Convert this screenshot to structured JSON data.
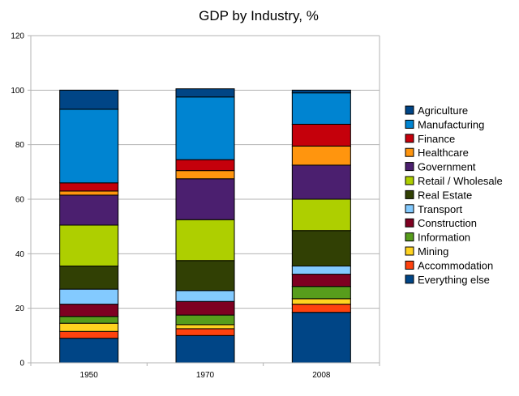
{
  "chart_data": {
    "type": "bar",
    "stacked": true,
    "title": "GDP by Industry, %",
    "xlabel": "",
    "ylabel": "",
    "ylim": [
      0,
      120
    ],
    "yticks": [
      0,
      20,
      40,
      60,
      80,
      100,
      120
    ],
    "grid": true,
    "legend_position": "right",
    "categories": [
      "1950",
      "1970",
      "2008"
    ],
    "series": [
      {
        "name": "Everything else",
        "color": "#004586",
        "values": [
          9,
          10,
          18.5
        ]
      },
      {
        "name": "Accommodation",
        "color": "#ff420e",
        "values": [
          2.5,
          2.5,
          3
        ]
      },
      {
        "name": "Mining",
        "color": "#ffd320",
        "values": [
          3,
          1.5,
          2
        ]
      },
      {
        "name": "Information",
        "color": "#579d1c",
        "values": [
          2.5,
          3.5,
          4.5
        ]
      },
      {
        "name": "Construction",
        "color": "#7e0021",
        "values": [
          4.5,
          5,
          4.5
        ]
      },
      {
        "name": "Transport",
        "color": "#83caff",
        "values": [
          5.5,
          4,
          3
        ]
      },
      {
        "name": "Real Estate",
        "color": "#314004",
        "values": [
          8.5,
          11,
          13
        ]
      },
      {
        "name": "Retail / Wholesale",
        "color": "#aecf00",
        "values": [
          15,
          15,
          11.5
        ]
      },
      {
        "name": "Government",
        "color": "#4b1f6f",
        "values": [
          11,
          15,
          12.5
        ]
      },
      {
        "name": "Healthcare",
        "color": "#ff950e",
        "values": [
          1.5,
          3,
          7
        ]
      },
      {
        "name": "Finance",
        "color": "#c5000b",
        "values": [
          3,
          4,
          8
        ]
      },
      {
        "name": "Manufacturing",
        "color": "#0084d1",
        "values": [
          27,
          23,
          11.5
        ]
      },
      {
        "name": "Agriculture",
        "color": "#004586",
        "values": [
          7,
          3,
          1
        ]
      }
    ],
    "legend_order": [
      "Agriculture",
      "Manufacturing",
      "Finance",
      "Healthcare",
      "Government",
      "Retail / Wholesale",
      "Real Estate",
      "Transport",
      "Construction",
      "Information",
      "Mining",
      "Accommodation",
      "Everything else"
    ]
  }
}
